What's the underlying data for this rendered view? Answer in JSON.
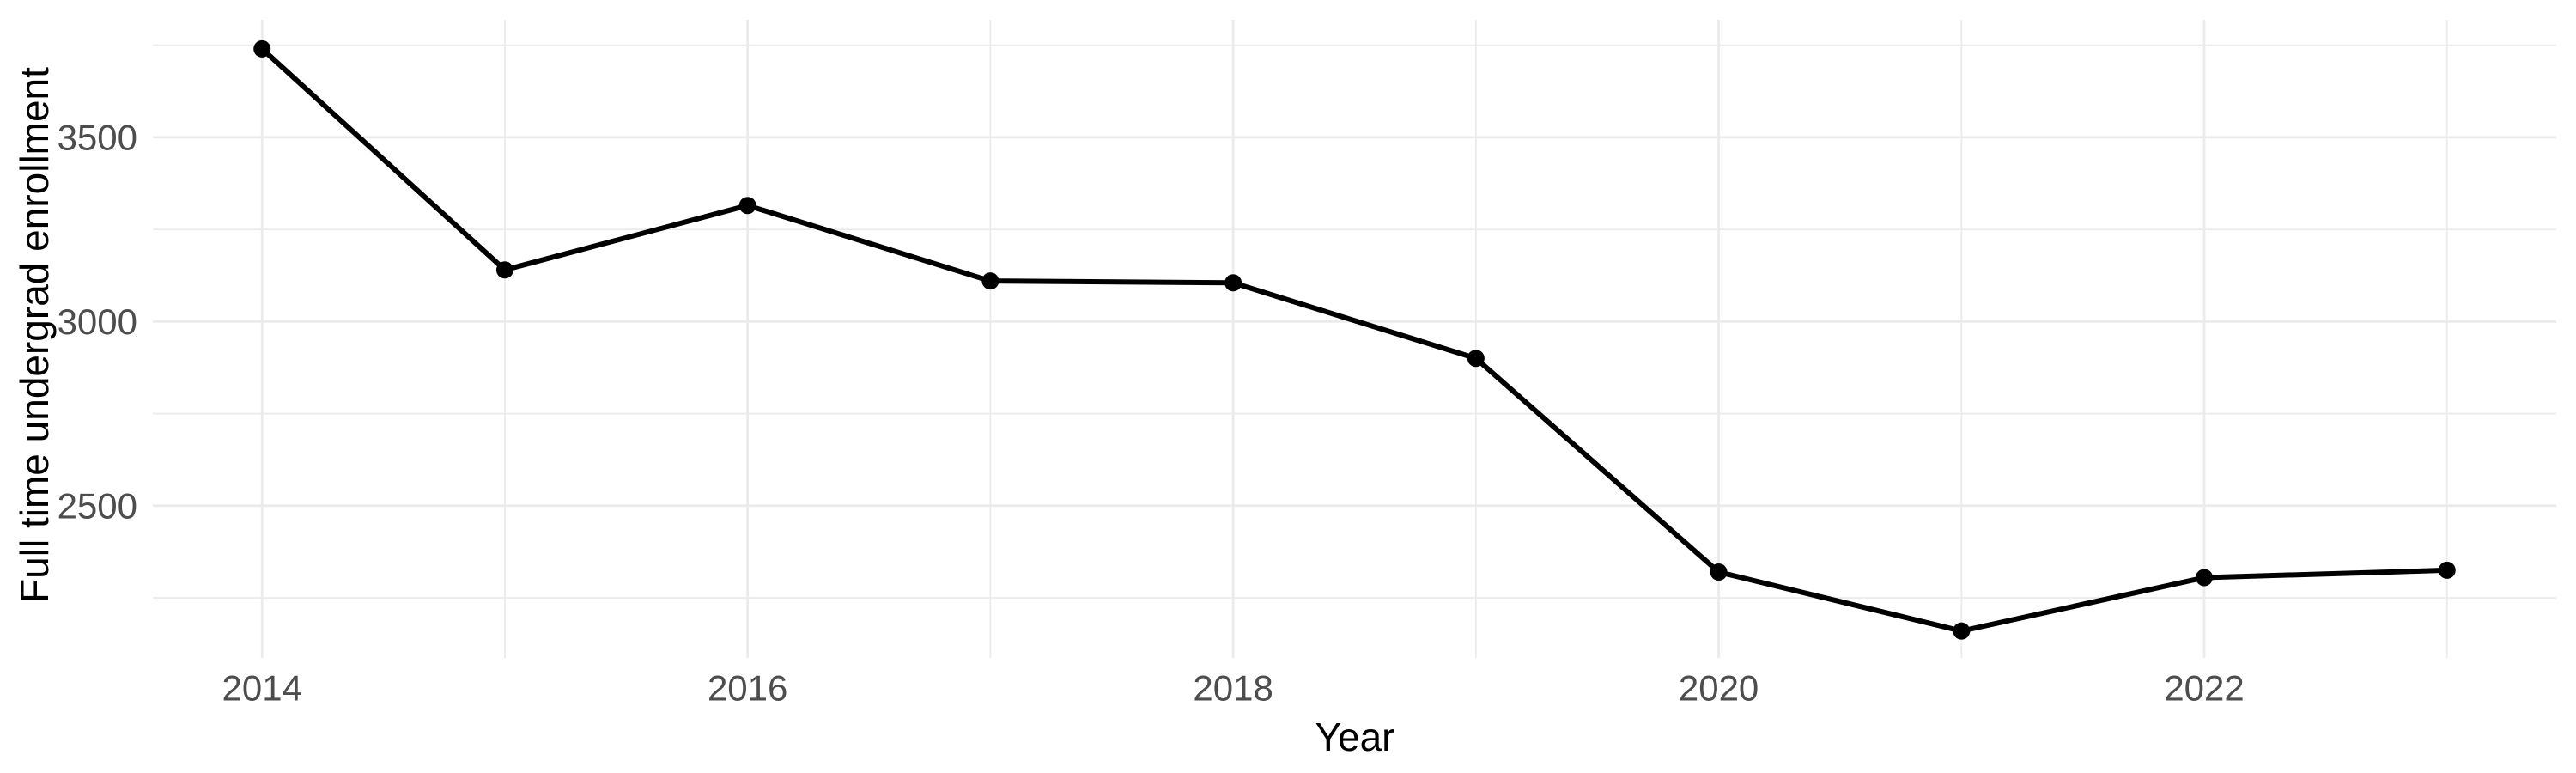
{
  "chart_data": {
    "type": "line",
    "title": "",
    "xlabel": "Year",
    "ylabel": "Full time undergrad enrollment",
    "x": [
      2014,
      2015,
      2016,
      2017,
      2018,
      2019,
      2020,
      2021,
      2022,
      2023
    ],
    "series": [
      {
        "name": "Full time undergrad enrollment",
        "values": [
          3740,
          3140,
          3315,
          3110,
          3105,
          2900,
          2320,
          2160,
          2305,
          2325
        ]
      }
    ],
    "x_tick_labels": [
      "2014",
      "2016",
      "2018",
      "2020",
      "2022"
    ],
    "x_major_ticks": [
      2014,
      2016,
      2018,
      2020,
      2022
    ],
    "x_minor_gridlines": [
      2015,
      2017,
      2019,
      2021,
      2023
    ],
    "y_tick_labels": [
      "2500",
      "3000",
      "3500"
    ],
    "y_major_ticks": [
      2500,
      3000,
      3500
    ],
    "y_minor_gridlines": [
      2250,
      2750,
      3250,
      3750
    ],
    "xlim": [
      2013.55,
      2023.45
    ],
    "ylim": [
      2087,
      3819
    ],
    "grid": "major and minor gridlines, no axis lines, no legend",
    "legend_position": "none",
    "marker": "filled-circle",
    "colors": {
      "line": "#000000",
      "point": "#000000",
      "gridline": "#ebebeb",
      "tick_label": "#4d4d4d",
      "axis_title": "#000000",
      "background": "#ffffff"
    }
  }
}
